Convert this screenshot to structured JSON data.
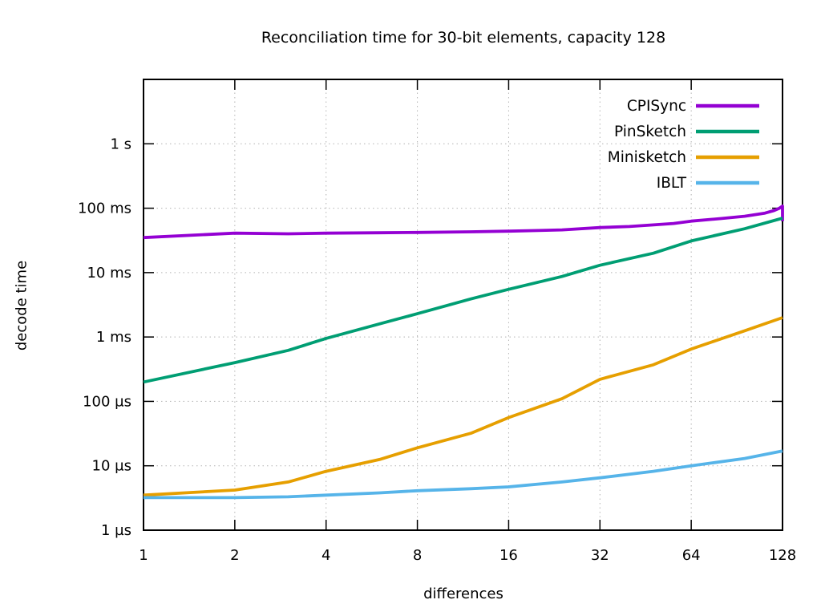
{
  "chart_data": {
    "type": "line",
    "title": "Reconciliation time for 30-bit elements, capacity 128",
    "xlabel": "differences",
    "ylabel": "decode time",
    "x_scale": "log2",
    "y_scale": "log10",
    "xlim": [
      1,
      128
    ],
    "ylim_us": [
      1,
      10000000
    ],
    "x_ticks": [
      1,
      2,
      4,
      8,
      16,
      32,
      64,
      128
    ],
    "y_ticks": [
      {
        "us": 1,
        "label": "1 µs"
      },
      {
        "us": 10,
        "label": "10 µs"
      },
      {
        "us": 100,
        "label": "100 µs"
      },
      {
        "us": 1000,
        "label": "1 ms"
      },
      {
        "us": 10000,
        "label": "10 ms"
      },
      {
        "us": 100000,
        "label": "100 ms"
      },
      {
        "us": 1000000,
        "label": "1 s"
      }
    ],
    "grid": "dotted",
    "legend_position": "top-right-inside",
    "colors": {
      "border": "#000000",
      "grid": "#b3b3b3",
      "text": "#000000"
    },
    "series": [
      {
        "name": "CPISync",
        "color": "#9400d3",
        "points_x_us": [
          [
            1,
            35000
          ],
          [
            2,
            41000
          ],
          [
            3,
            40000
          ],
          [
            4,
            41000
          ],
          [
            6,
            41500
          ],
          [
            8,
            42000
          ],
          [
            12,
            43000
          ],
          [
            16,
            44000
          ],
          [
            20,
            45000
          ],
          [
            24,
            46000
          ],
          [
            32,
            50000
          ],
          [
            40,
            52000
          ],
          [
            48,
            55000
          ],
          [
            56,
            58000
          ],
          [
            64,
            63000
          ],
          [
            80,
            69000
          ],
          [
            96,
            75000
          ],
          [
            112,
            84000
          ],
          [
            120,
            92000
          ],
          [
            125,
            100000
          ],
          [
            128,
            108000
          ],
          [
            128,
            63000
          ]
        ]
      },
      {
        "name": "PinSketch",
        "color": "#009e73",
        "points_x_us": [
          [
            1,
            200
          ],
          [
            2,
            400
          ],
          [
            3,
            620
          ],
          [
            4,
            950
          ],
          [
            6,
            1600
          ],
          [
            8,
            2300
          ],
          [
            12,
            3900
          ],
          [
            16,
            5500
          ],
          [
            24,
            8700
          ],
          [
            32,
            13000
          ],
          [
            48,
            20000
          ],
          [
            64,
            31000
          ],
          [
            96,
            48000
          ],
          [
            128,
            70000
          ]
        ]
      },
      {
        "name": "Minisketch",
        "color": "#e69f00",
        "points_x_us": [
          [
            1,
            3.5
          ],
          [
            2,
            4.2
          ],
          [
            3,
            5.6
          ],
          [
            4,
            8.2
          ],
          [
            6,
            12.5
          ],
          [
            8,
            19
          ],
          [
            12,
            32
          ],
          [
            16,
            56
          ],
          [
            24,
            110
          ],
          [
            32,
            220
          ],
          [
            48,
            370
          ],
          [
            64,
            650
          ],
          [
            96,
            1250
          ],
          [
            128,
            2000
          ]
        ]
      },
      {
        "name": "IBLT",
        "color": "#56b4e9",
        "points_x_us": [
          [
            1,
            3.2
          ],
          [
            2,
            3.2
          ],
          [
            3,
            3.3
          ],
          [
            4,
            3.5
          ],
          [
            6,
            3.8
          ],
          [
            8,
            4.1
          ],
          [
            12,
            4.4
          ],
          [
            16,
            4.7
          ],
          [
            24,
            5.6
          ],
          [
            32,
            6.5
          ],
          [
            48,
            8.2
          ],
          [
            64,
            10
          ],
          [
            96,
            13
          ],
          [
            128,
            17
          ]
        ]
      }
    ]
  }
}
